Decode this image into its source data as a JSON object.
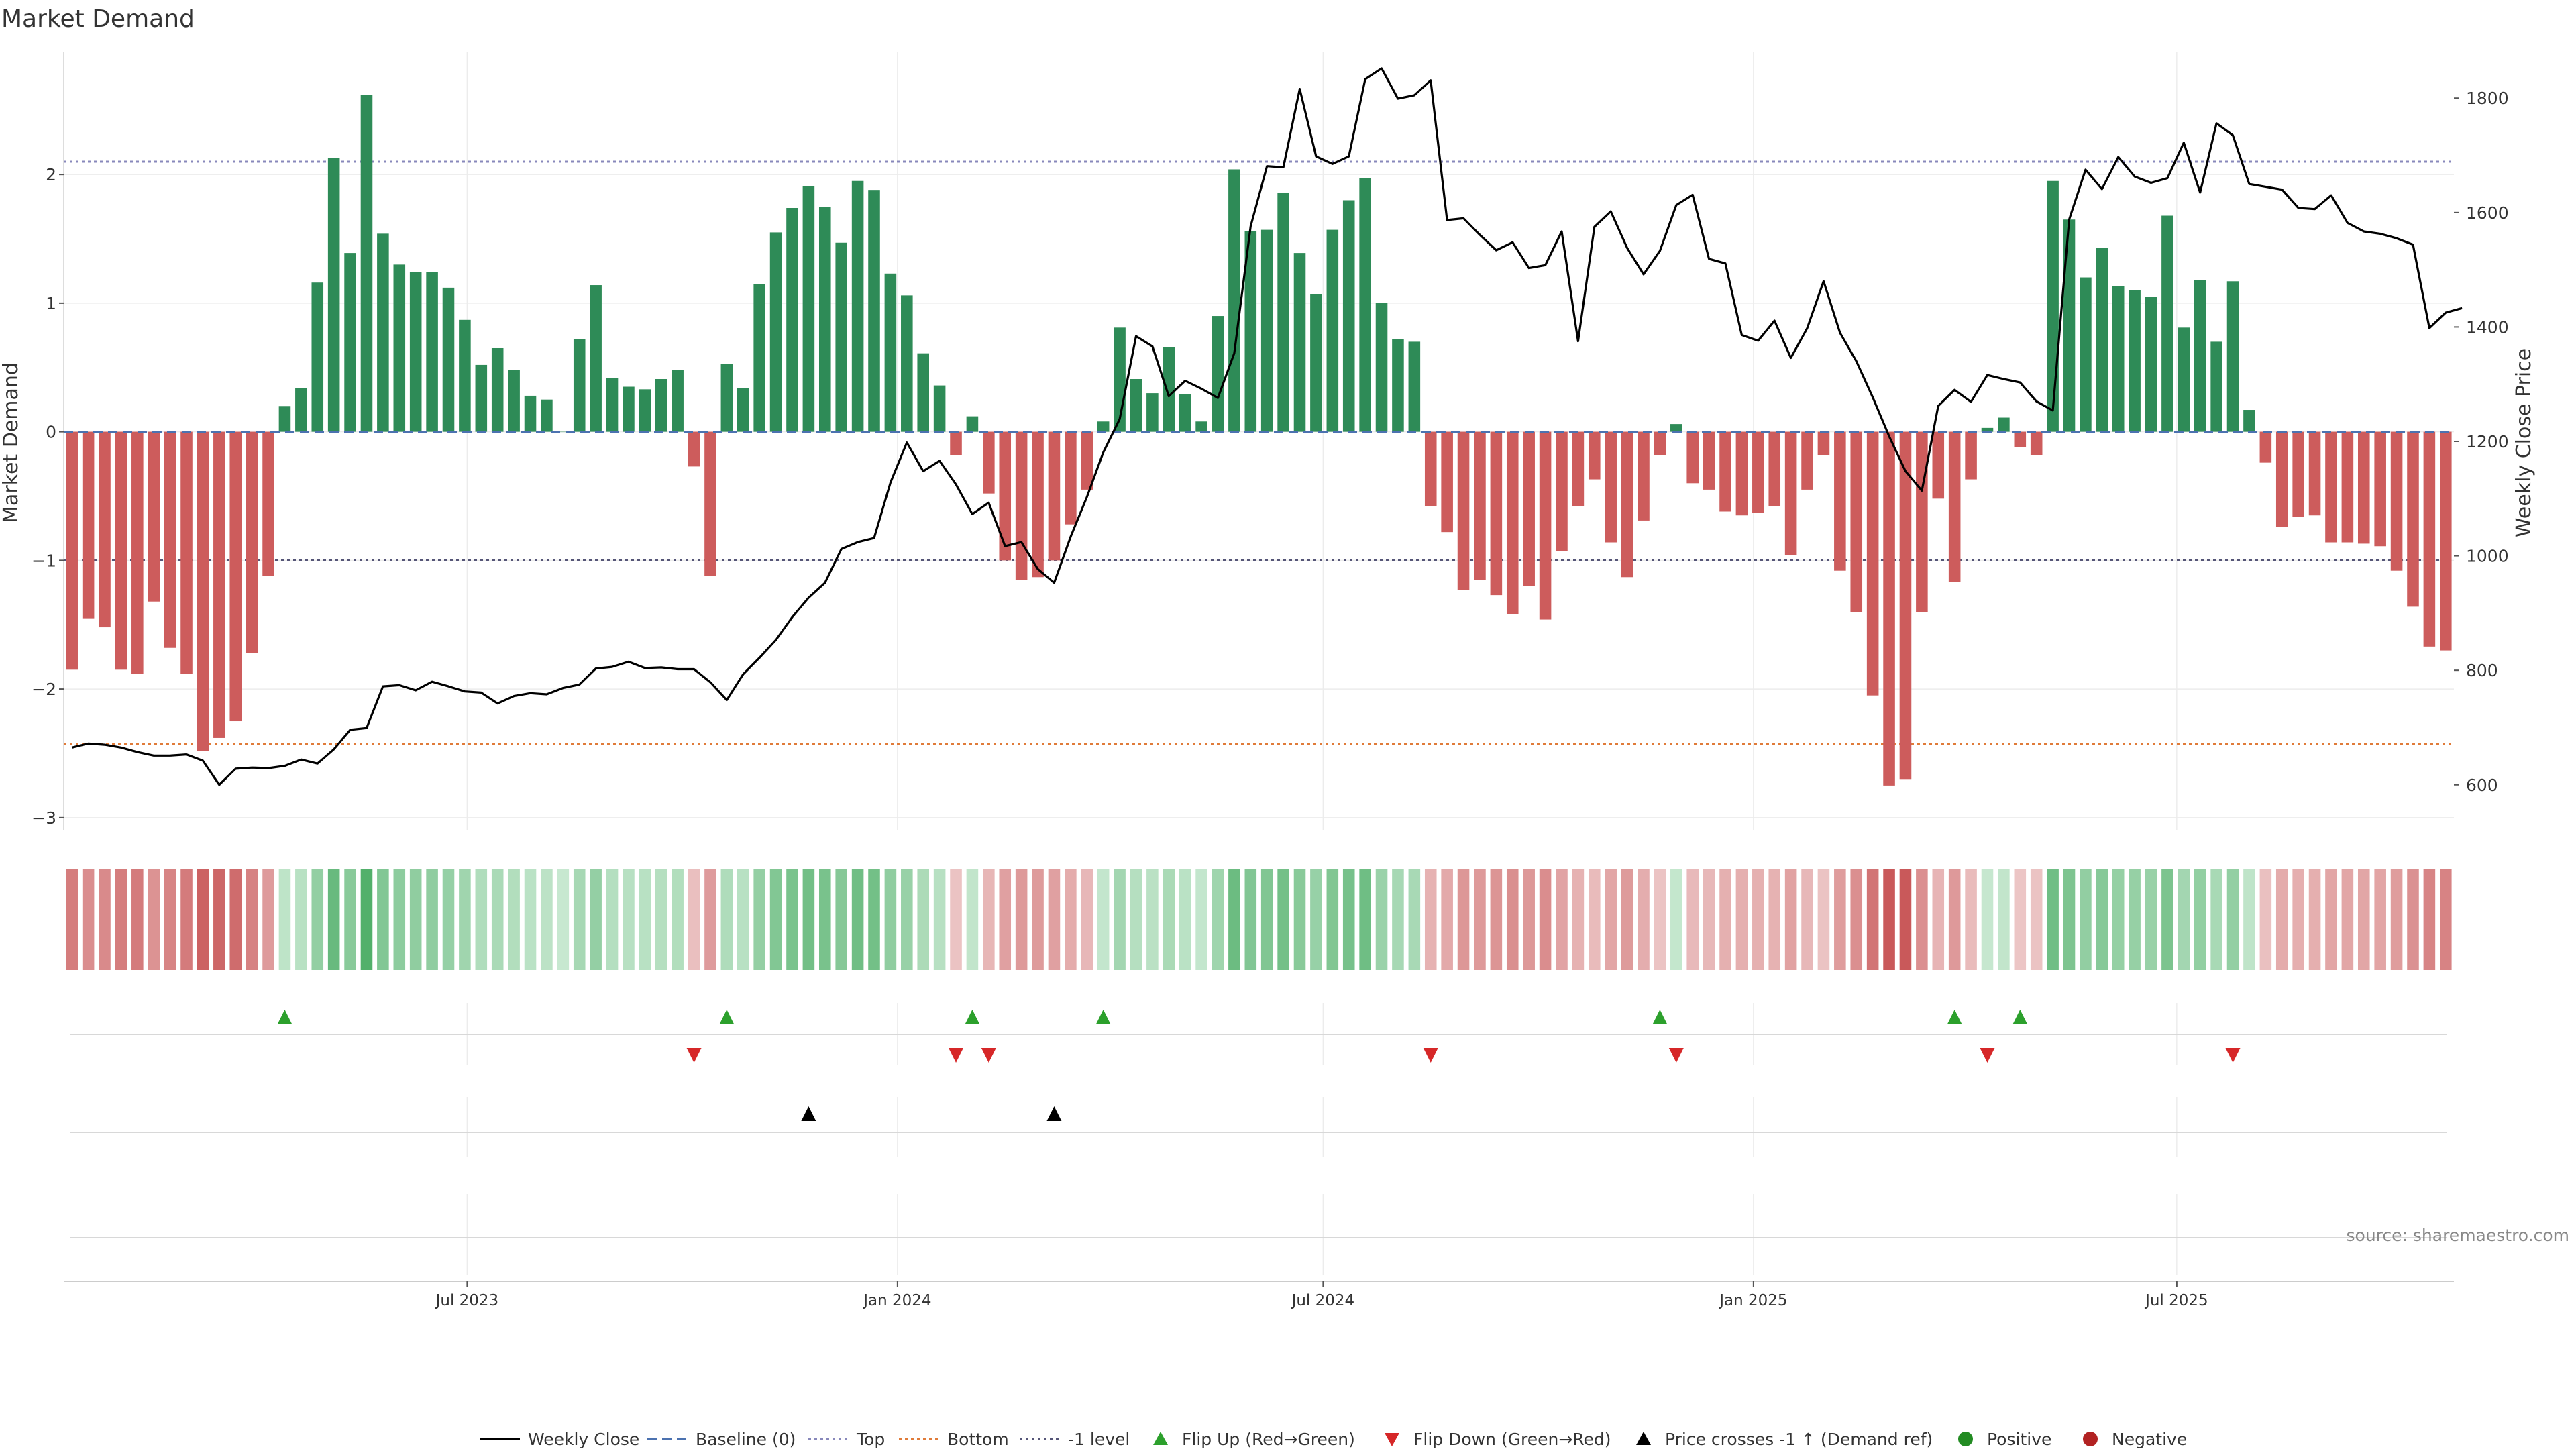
{
  "chart_data": {
    "type": "bar+line",
    "title": "Market Demand",
    "ylabel": "Market Demand",
    "y2label": "Weekly Close Price",
    "source": "source: sharemaestro.com",
    "ylim": [
      -3.1,
      2.95
    ],
    "y2lim": [
      520,
      1880
    ],
    "yticks": [
      2,
      1,
      0,
      -1,
      -2,
      -3
    ],
    "ytick_labels": [
      "2",
      "1",
      "0",
      "−1",
      "−2",
      "−3"
    ],
    "y2ticks": [
      1800,
      1600,
      1400,
      1200,
      1000,
      800,
      600
    ],
    "y2tick_labels": [
      "1800",
      "1600",
      "1400",
      "1200",
      "1000",
      "800",
      "600"
    ],
    "reference_lines": {
      "top": 2.1,
      "bottom": -2.43,
      "minus_one": -1,
      "baseline": 0
    },
    "x_start": "2023-01-13",
    "x_step_days": 7,
    "xtick_dates": [
      "2023-07-01",
      "2024-01-01",
      "2024-07-01",
      "2025-01-01",
      "2025-07-01"
    ],
    "xtick_labels": [
      "Jul 2023",
      "Jan 2024",
      "Jul 2024",
      "Jan 2025",
      "Jul 2025"
    ],
    "demand": [
      -1.85,
      -1.45,
      -1.52,
      -1.85,
      -1.88,
      -1.32,
      -1.68,
      -1.88,
      -2.48,
      -2.38,
      -2.25,
      -1.72,
      -1.12,
      0.2,
      0.34,
      1.16,
      2.13,
      1.39,
      2.62,
      1.54,
      1.3,
      1.24,
      1.24,
      1.12,
      0.87,
      0.52,
      0.65,
      0.48,
      0.28,
      0.25,
      0.0,
      0.72,
      1.14,
      0.42,
      0.35,
      0.33,
      0.41,
      0.48,
      -0.27,
      -1.12,
      0.53,
      0.34,
      1.15,
      1.55,
      1.74,
      1.91,
      1.75,
      1.47,
      1.95,
      1.88,
      1.23,
      1.06,
      0.61,
      0.36,
      -0.18,
      0.12,
      -0.48,
      -1.0,
      -1.15,
      -1.13,
      -1.0,
      -0.72,
      -0.45,
      0.08,
      0.81,
      0.41,
      0.3,
      0.66,
      0.29,
      0.08,
      0.9,
      2.04,
      1.56,
      1.57,
      1.86,
      1.39,
      1.07,
      1.57,
      1.8,
      1.97,
      1.0,
      0.72,
      0.7,
      -0.58,
      -0.78,
      -1.23,
      -1.15,
      -1.27,
      -1.42,
      -1.2,
      -1.46,
      -0.93,
      -0.58,
      -0.37,
      -0.86,
      -1.13,
      -0.69,
      -0.18,
      0.06,
      -0.4,
      -0.45,
      -0.62,
      -0.65,
      -0.63,
      -0.58,
      -0.96,
      -0.45,
      -0.18,
      -1.08,
      -1.4,
      -2.05,
      -2.75,
      -2.7,
      -1.4,
      -0.52,
      -1.17,
      -0.37,
      0.03,
      0.11,
      -0.12,
      -0.18,
      1.95,
      1.65,
      1.2,
      1.43,
      1.13,
      1.1,
      1.05,
      1.68,
      0.81,
      1.18,
      0.7,
      1.17,
      0.17,
      -0.24,
      -0.74,
      -0.66,
      -0.65,
      -0.86,
      -0.86,
      -0.87,
      -0.89,
      -1.08,
      -1.36,
      -1.67,
      -1.7
    ],
    "close": [
      665,
      672,
      670,
      665,
      657,
      651,
      651,
      653,
      642,
      600,
      628,
      630,
      629,
      633,
      644,
      637,
      662,
      696,
      699,
      772,
      774,
      765,
      780,
      772,
      763,
      761,
      742,
      755,
      760,
      758,
      769,
      775,
      803,
      806,
      815,
      804,
      805,
      802,
      802,
      779,
      748,
      793,
      822,
      853,
      893,
      927,
      953,
      1012,
      1024,
      1031,
      1128,
      1198,
      1148,
      1166,
      1125,
      1073,
      1093,
      1017,
      1024,
      977,
      953,
      1033,
      1103,
      1181,
      1239,
      1384,
      1366,
      1279,
      1306,
      1292,
      1276,
      1354,
      1576,
      1681,
      1679,
      1816,
      1698,
      1685,
      1698,
      1833,
      1852,
      1799,
      1805,
      1831,
      1587,
      1590,
      1561,
      1534,
      1548,
      1503,
      1508,
      1567,
      1375,
      1575,
      1602,
      1538,
      1492,
      1533,
      1613,
      1631,
      1519,
      1511,
      1386,
      1376,
      1411,
      1346,
      1398,
      1480,
      1390,
      1340,
      1277,
      1209,
      1148,
      1114,
      1262,
      1290,
      1269,
      1316,
      1309,
      1303,
      1270,
      1254,
      1588,
      1675,
      1641,
      1697,
      1663,
      1652,
      1660,
      1722,
      1635,
      1756,
      1735,
      1650,
      1645,
      1640,
      1608,
      1606,
      1630,
      1582,
      1567,
      1563,
      1555,
      1544,
      1398,
      1425,
      1433
    ],
    "flip_up_idx": [
      13,
      40,
      55,
      63,
      97,
      115,
      119
    ],
    "flip_down_idx": [
      38,
      54,
      56,
      83,
      98,
      117,
      132
    ],
    "price_cross_idx": [
      45,
      60
    ],
    "legend": [
      "Weekly Close",
      "Baseline (0)",
      "Top",
      "Bottom",
      "-1 level",
      "Flip Up (Red→Green)",
      "Flip Down (Green→Red)",
      "Price crosses -1 ↑ (Demand ref)",
      "Positive",
      "Negative"
    ],
    "colors": {
      "positive": "#2e8b57",
      "negative": "#cd5c5c",
      "close": "#000000",
      "baseline": "#4c72b0",
      "top": "#8888bb",
      "bottom": "#e07b39",
      "minus_one": "#555577",
      "flip_up": "#2ca02c",
      "flip_down": "#d62728",
      "cross": "#000000",
      "positive_marker": "#228b22",
      "negative_marker": "#b22222"
    }
  }
}
